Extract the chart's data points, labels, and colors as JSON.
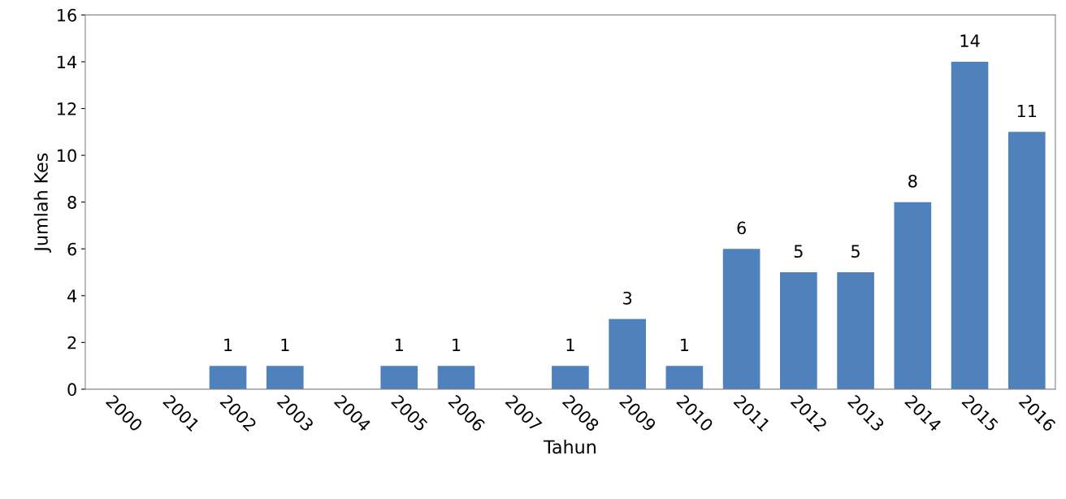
{
  "chart_data": {
    "type": "bar",
    "xlabel": "Tahun",
    "ylabel": "Jumlah Kes",
    "categories": [
      "2000",
      "2001",
      "2002",
      "2003",
      "2004",
      "2005",
      "2006",
      "2007",
      "2008",
      "2009",
      "2010",
      "2011",
      "2012",
      "2013",
      "2014",
      "2015",
      "2016"
    ],
    "values": [
      0,
      0,
      1,
      1,
      0,
      1,
      1,
      0,
      1,
      3,
      1,
      6,
      5,
      5,
      8,
      14,
      11
    ],
    "value_labels": [
      null,
      null,
      "1",
      "1",
      null,
      "1",
      "1",
      null,
      "1",
      "3",
      "1",
      "6",
      "5",
      "5",
      "8",
      "14",
      "11"
    ],
    "color": "#4f81bd",
    "ylim": [
      0,
      16
    ],
    "yticks": [
      0,
      2,
      4,
      6,
      8,
      10,
      12,
      14,
      16
    ],
    "grid": false,
    "legend": false
  }
}
